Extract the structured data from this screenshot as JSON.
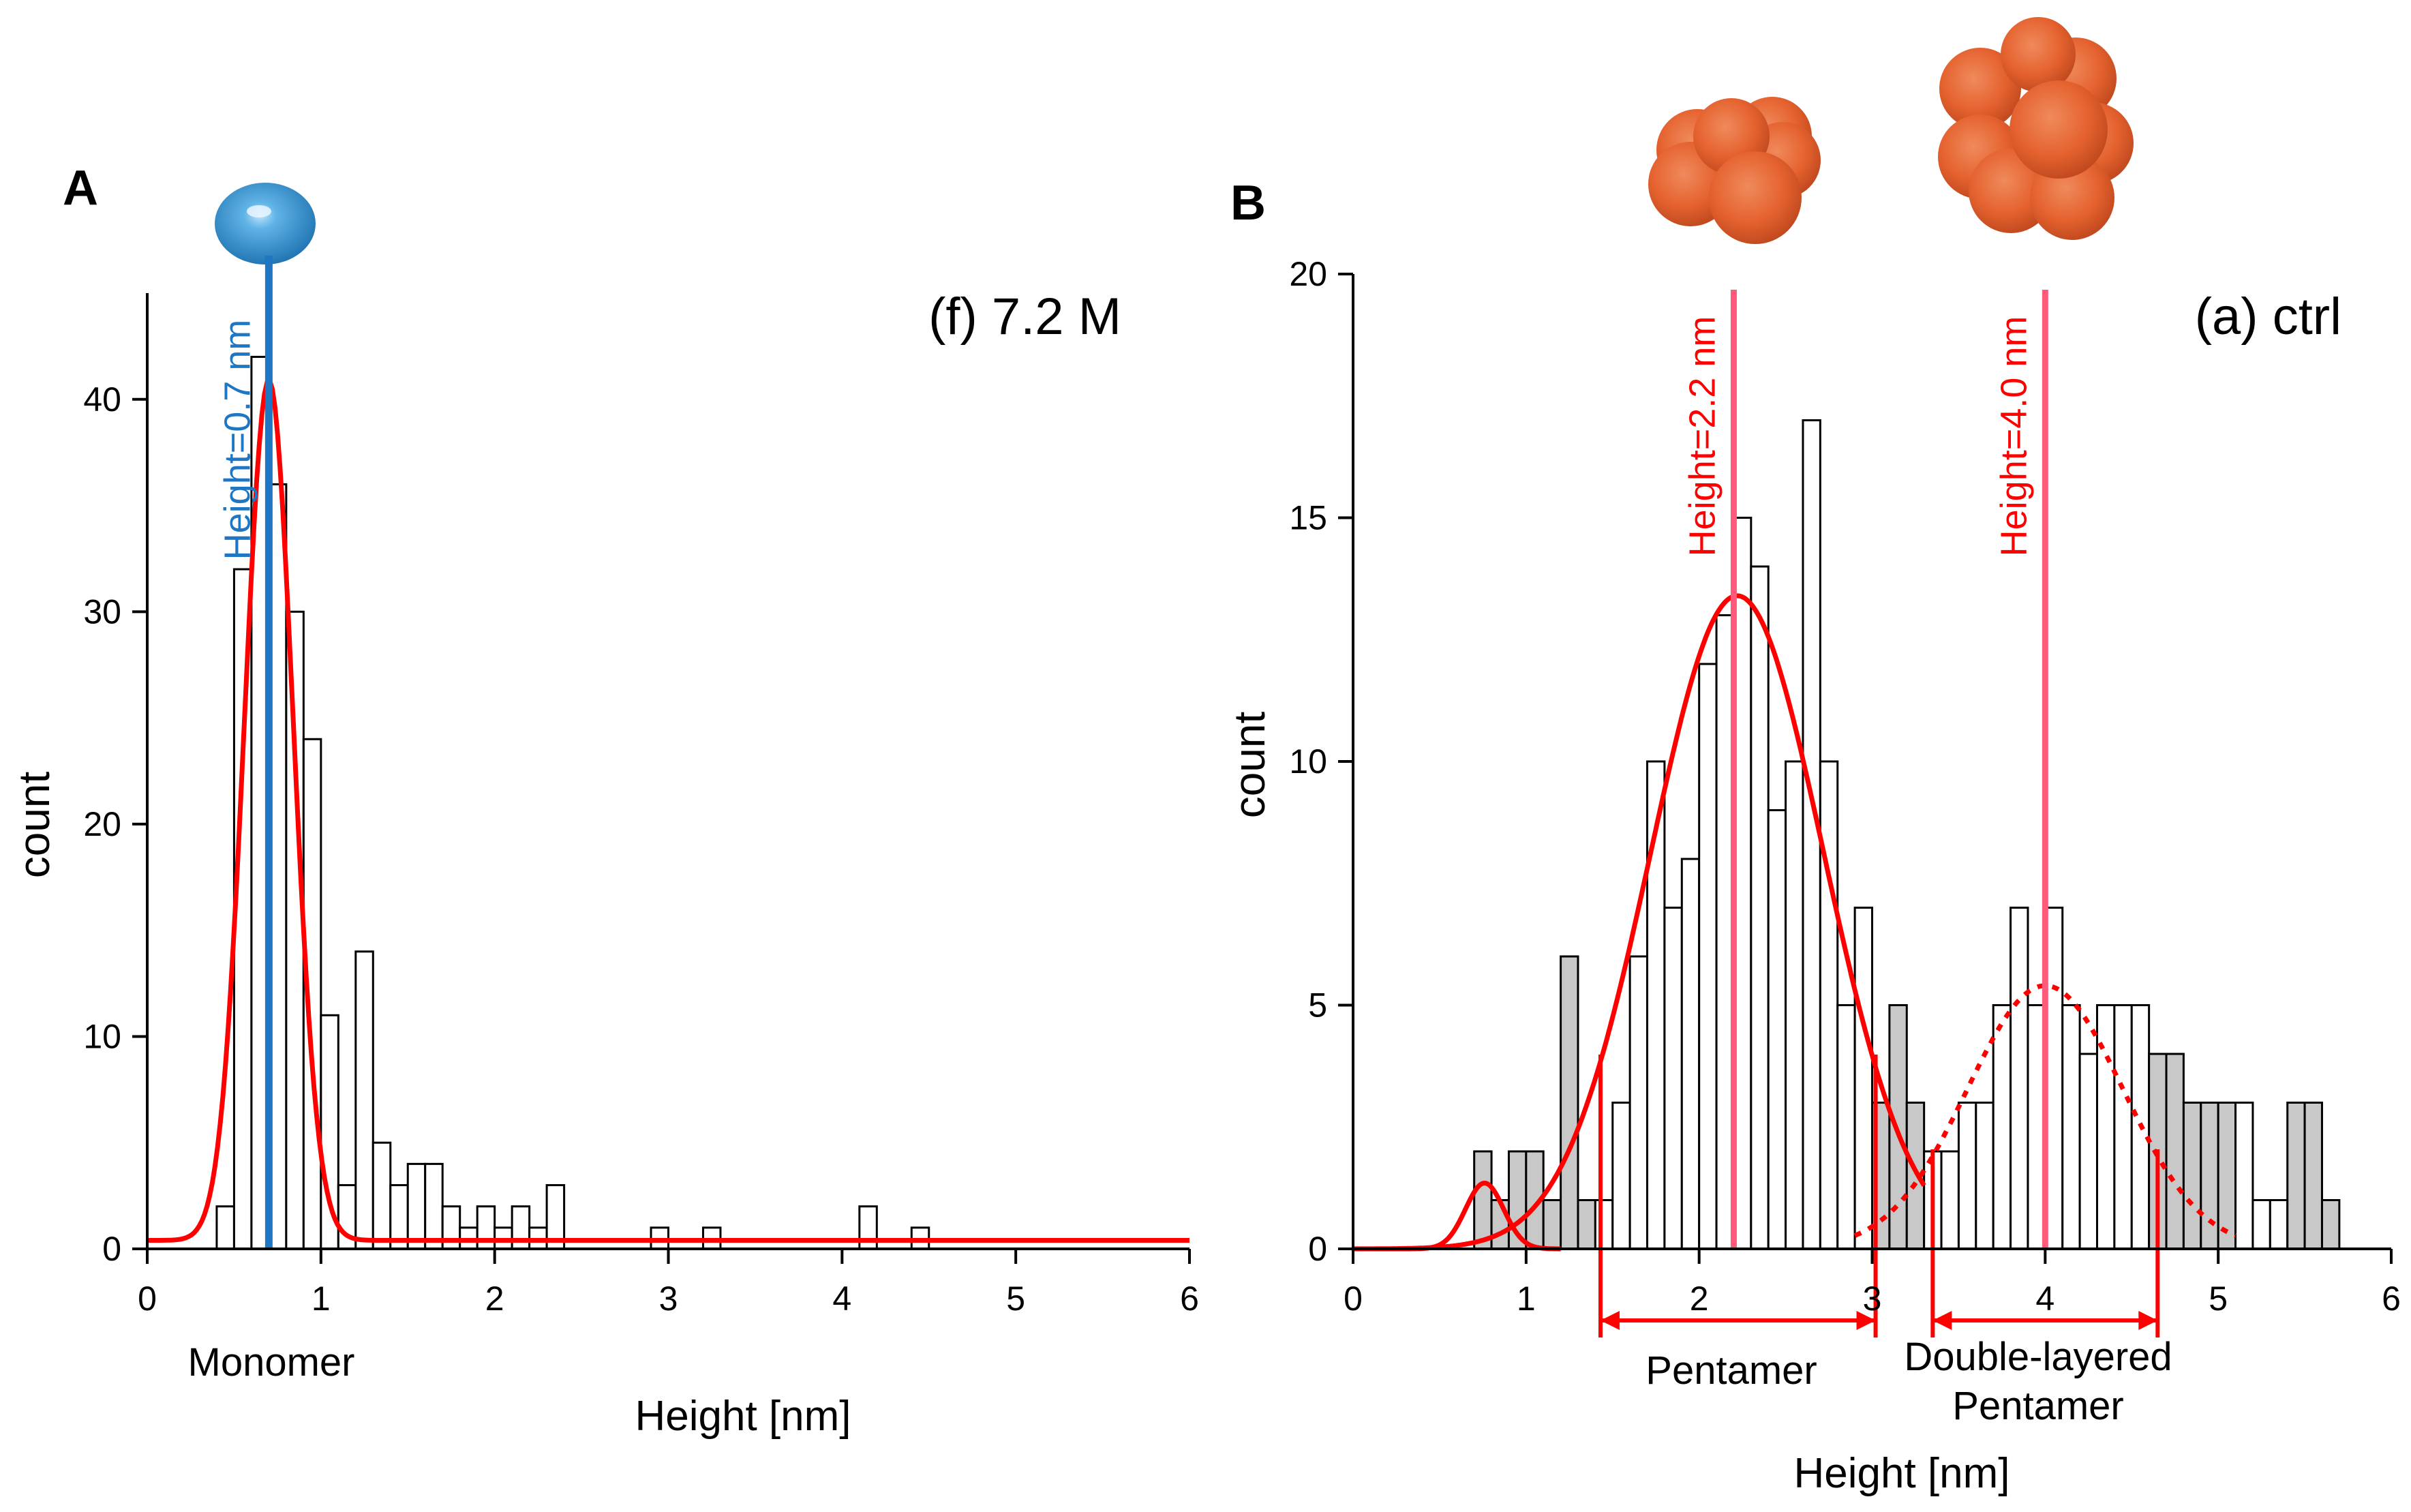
{
  "panels": {
    "A": {
      "letter": "A",
      "subtitle": "(f) 7.2 M",
      "peak_label": "Height=0.7 nm",
      "species_label": "Monomer"
    },
    "B": {
      "letter": "B",
      "subtitle": "(a) ctrl",
      "peak_labels": [
        "Height=2.2 nm",
        "Height=4.0 nm"
      ],
      "range_labels": [
        "Pentamer",
        "Double-layered",
        "Pentamer"
      ]
    }
  },
  "colors": {
    "fit": "#ff0000",
    "monomer_line": "#1f77c4",
    "peak_line": "#ff5a7a",
    "bar_fill": "#ffffff",
    "bar_fill_outside": "#c8c8c8",
    "bar_stroke": "#000000",
    "monomer_sphere": "#3d9ad6",
    "oligomer_sphere": "#e8673a"
  },
  "icons": [
    "monomer-sphere-icon",
    "pentamer-cluster-icon",
    "double-layered-pentamer-cluster-icon"
  ],
  "chart_data": [
    {
      "type": "bar",
      "subtitle": "(f) 7.2 M",
      "xlabel": "Height [nm]",
      "ylabel": "count",
      "xlim": [
        0,
        6
      ],
      "ylim": [
        0,
        45
      ],
      "xticks": [
        0,
        1,
        2,
        3,
        4,
        5,
        6
      ],
      "yticks": [
        0,
        10,
        20,
        30,
        40
      ],
      "bin_width": 0.1,
      "bins": [
        {
          "x": 0.4,
          "count": 2
        },
        {
          "x": 0.5,
          "count": 32
        },
        {
          "x": 0.6,
          "count": 42
        },
        {
          "x": 0.7,
          "count": 36
        },
        {
          "x": 0.8,
          "count": 30
        },
        {
          "x": 0.9,
          "count": 24
        },
        {
          "x": 1.0,
          "count": 11
        },
        {
          "x": 1.1,
          "count": 3
        },
        {
          "x": 1.2,
          "count": 14
        },
        {
          "x": 1.3,
          "count": 5
        },
        {
          "x": 1.4,
          "count": 3
        },
        {
          "x": 1.5,
          "count": 4
        },
        {
          "x": 1.6,
          "count": 4
        },
        {
          "x": 1.7,
          "count": 2
        },
        {
          "x": 1.8,
          "count": 1
        },
        {
          "x": 1.9,
          "count": 2
        },
        {
          "x": 2.0,
          "count": 1
        },
        {
          "x": 2.1,
          "count": 2
        },
        {
          "x": 2.2,
          "count": 1
        },
        {
          "x": 2.3,
          "count": 3
        },
        {
          "x": 2.9,
          "count": 1
        },
        {
          "x": 3.2,
          "count": 1
        },
        {
          "x": 4.1,
          "count": 2
        },
        {
          "x": 4.4,
          "count": 1
        }
      ],
      "fits": [
        {
          "mean": 0.7,
          "sigma": 0.14,
          "amplitude": 40.5,
          "baseline": 0.4,
          "range": [
            0,
            6
          ],
          "style": "solid"
        }
      ],
      "peak_lines": [
        {
          "x": 0.7,
          "label": "Height=0.7 nm"
        }
      ],
      "species": [
        {
          "label": "Monomer",
          "x": 0.7
        }
      ]
    },
    {
      "type": "bar",
      "subtitle": "(a) ctrl",
      "xlabel": "Height [nm]",
      "ylabel": "count",
      "xlim": [
        0,
        6
      ],
      "ylim": [
        0,
        20
      ],
      "xticks": [
        0,
        1,
        2,
        3,
        4,
        5,
        6
      ],
      "yticks": [
        0,
        5,
        10,
        15,
        20
      ],
      "bin_width": 0.1,
      "bins": [
        {
          "x": 0.7,
          "count": 2,
          "shaded": true
        },
        {
          "x": 0.8,
          "count": 1,
          "shaded": true
        },
        {
          "x": 0.9,
          "count": 2,
          "shaded": true
        },
        {
          "x": 1.0,
          "count": 2,
          "shaded": true
        },
        {
          "x": 1.1,
          "count": 1,
          "shaded": true
        },
        {
          "x": 1.2,
          "count": 6,
          "shaded": true
        },
        {
          "x": 1.3,
          "count": 1,
          "shaded": true
        },
        {
          "x": 1.4,
          "count": 1,
          "shaded": false
        },
        {
          "x": 1.5,
          "count": 3,
          "shaded": false
        },
        {
          "x": 1.6,
          "count": 6,
          "shaded": false
        },
        {
          "x": 1.7,
          "count": 10,
          "shaded": false
        },
        {
          "x": 1.8,
          "count": 7,
          "shaded": false
        },
        {
          "x": 1.9,
          "count": 8,
          "shaded": false
        },
        {
          "x": 2.0,
          "count": 12,
          "shaded": false
        },
        {
          "x": 2.1,
          "count": 13,
          "shaded": false
        },
        {
          "x": 2.2,
          "count": 15,
          "shaded": false
        },
        {
          "x": 2.3,
          "count": 14,
          "shaded": false
        },
        {
          "x": 2.4,
          "count": 9,
          "shaded": false
        },
        {
          "x": 2.5,
          "count": 10,
          "shaded": false
        },
        {
          "x": 2.6,
          "count": 17,
          "shaded": false
        },
        {
          "x": 2.7,
          "count": 10,
          "shaded": false
        },
        {
          "x": 2.8,
          "count": 5,
          "shaded": false
        },
        {
          "x": 2.9,
          "count": 7,
          "shaded": false
        },
        {
          "x": 3.0,
          "count": 3,
          "shaded": true
        },
        {
          "x": 3.1,
          "count": 5,
          "shaded": true
        },
        {
          "x": 3.2,
          "count": 3,
          "shaded": true
        },
        {
          "x": 3.3,
          "count": 2,
          "shaded": false
        },
        {
          "x": 3.4,
          "count": 2,
          "shaded": false
        },
        {
          "x": 3.5,
          "count": 3,
          "shaded": false
        },
        {
          "x": 3.6,
          "count": 3,
          "shaded": false
        },
        {
          "x": 3.7,
          "count": 5,
          "shaded": false
        },
        {
          "x": 3.8,
          "count": 7,
          "shaded": false
        },
        {
          "x": 3.9,
          "count": 5,
          "shaded": false
        },
        {
          "x": 4.0,
          "count": 7,
          "shaded": false
        },
        {
          "x": 4.1,
          "count": 5,
          "shaded": false
        },
        {
          "x": 4.2,
          "count": 4,
          "shaded": false
        },
        {
          "x": 4.3,
          "count": 5,
          "shaded": false
        },
        {
          "x": 4.4,
          "count": 5,
          "shaded": false
        },
        {
          "x": 4.5,
          "count": 5,
          "shaded": false
        },
        {
          "x": 4.6,
          "count": 4,
          "shaded": true
        },
        {
          "x": 4.7,
          "count": 4,
          "shaded": true
        },
        {
          "x": 4.8,
          "count": 3,
          "shaded": true
        },
        {
          "x": 4.9,
          "count": 3,
          "shaded": true
        },
        {
          "x": 5.0,
          "count": 3,
          "shaded": true
        },
        {
          "x": 5.1,
          "count": 3,
          "shaded": false
        },
        {
          "x": 5.2,
          "count": 1,
          "shaded": false
        },
        {
          "x": 5.3,
          "count": 1,
          "shaded": false
        },
        {
          "x": 5.4,
          "count": 3,
          "shaded": true
        },
        {
          "x": 5.5,
          "count": 3,
          "shaded": true
        },
        {
          "x": 5.6,
          "count": 1,
          "shaded": true
        }
      ],
      "fits": [
        {
          "mean": 0.76,
          "sigma": 0.11,
          "amplitude": 1.35,
          "baseline": 0,
          "range": [
            0,
            1.2
          ],
          "style": "solid"
        },
        {
          "mean": 2.22,
          "sigma": 0.5,
          "amplitude": 13.4,
          "baseline": 0,
          "range": [
            0,
            3.3
          ],
          "style": "solid"
        },
        {
          "mean": 4.0,
          "sigma": 0.45,
          "amplitude": 5.4,
          "baseline": 0,
          "range": [
            2.9,
            5.1
          ],
          "style": "dashed"
        }
      ],
      "peak_lines": [
        {
          "x": 2.2,
          "label": "Height=2.2 nm"
        },
        {
          "x": 4.0,
          "label": "Height=4.0 nm"
        }
      ],
      "ranges": [
        {
          "from": 1.43,
          "to": 3.02,
          "label": "Pentamer"
        },
        {
          "from": 3.35,
          "to": 4.65,
          "label": "Double-layered Pentamer"
        }
      ]
    }
  ]
}
